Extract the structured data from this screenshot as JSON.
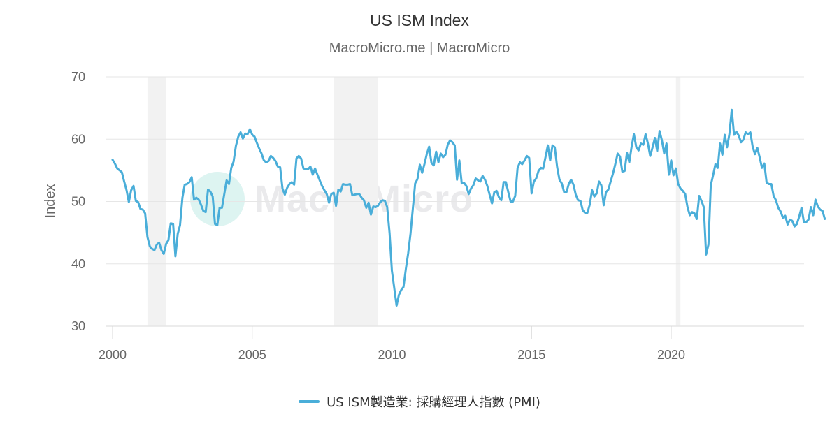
{
  "header": {
    "title": "US ISM Index",
    "subtitle": "MacroMicro.me | MacroMicro"
  },
  "watermark": {
    "text": "MacroMicro"
  },
  "legend": {
    "label": "US ISM製造業: 採購經理人指數 (PMI)",
    "color": "#4aaed9"
  },
  "colors": {
    "line": "#4aaed9",
    "grid": "#e6e6e6",
    "recession": "#f2f2f2",
    "axis_text": "#666666"
  },
  "chart_data": {
    "type": "line",
    "title": "US ISM Index",
    "subtitle": "MacroMicro.me | MacroMicro",
    "xlabel": "",
    "ylabel": "Index",
    "ylim": [
      30,
      70
    ],
    "yticks": [
      30,
      40,
      50,
      60,
      70
    ],
    "xlim": [
      2000,
      2024.75
    ],
    "xticks": [
      2000,
      2005,
      2010,
      2015,
      2020
    ],
    "grid": true,
    "legend_position": "bottom",
    "recession_bands": [
      [
        2001.25,
        2001.92
      ],
      [
        2007.92,
        2009.5
      ],
      [
        2020.17,
        2020.33
      ]
    ],
    "series": [
      {
        "name": "US ISM製造業: 採購經理人指數 (PMI)",
        "x_start": 2000.0,
        "x_step_months": 1,
        "values": [
          56.7,
          56.1,
          55.3,
          55.0,
          54.7,
          53.2,
          51.8,
          49.9,
          51.8,
          52.5,
          50.1,
          49.9,
          48.8,
          48.7,
          48.1,
          44.3,
          42.8,
          42.4,
          42.2,
          43.1,
          43.4,
          42.2,
          41.6,
          43.2,
          43.8,
          46.5,
          46.4,
          41.2,
          44.8,
          46.2,
          50.6,
          52.7,
          52.8,
          53.1,
          53.9,
          50.3,
          50.6,
          50.3,
          49.5,
          48.5,
          48.3,
          51.9,
          51.6,
          50.8,
          46.4,
          46.2,
          49.0,
          49.0,
          51.2,
          53.4,
          52.8,
          55.4,
          56.4,
          58.9,
          60.4,
          61.1,
          60.1,
          60.9,
          60.8,
          61.6,
          60.7,
          60.4,
          59.4,
          58.5,
          57.7,
          56.6,
          56.3,
          56.5,
          57.3,
          57.0,
          56.5,
          55.6,
          55.5,
          52.1,
          51.1,
          52.2,
          52.8,
          53.1,
          52.7,
          56.9,
          57.3,
          56.9,
          55.3,
          55.2,
          55.2,
          55.6,
          54.3,
          55.3,
          54.3,
          53.4,
          52.5,
          51.8,
          51.2,
          49.8,
          51.2,
          51.4,
          49.3,
          51.9,
          51.6,
          52.8,
          52.7,
          52.7,
          52.8,
          51.0,
          51.1,
          51.2,
          51.2,
          50.6,
          50.2,
          49.0,
          49.8,
          47.9,
          49.2,
          49.1,
          49.3,
          49.9,
          50.2,
          50.1,
          49.1,
          44.9,
          38.9,
          36.2,
          33.3,
          35.0,
          35.8,
          36.3,
          39.2,
          41.7,
          44.8,
          48.9,
          52.9,
          53.6,
          55.9,
          54.6,
          56.0,
          57.6,
          58.8,
          56.2,
          55.8,
          58.0,
          56.3,
          57.7,
          57.1,
          57.5,
          59.1,
          59.8,
          59.5,
          59.0,
          53.5,
          56.6,
          52.9,
          53.0,
          52.5,
          51.2,
          52.1,
          52.6,
          53.7,
          53.4,
          53.2,
          54.1,
          53.5,
          52.5,
          51.1,
          49.7,
          51.5,
          51.7,
          50.7,
          50.2,
          53.1,
          53.1,
          51.5,
          50.0,
          50.0,
          50.9,
          55.4,
          56.3,
          56.0,
          56.6,
          57.3,
          57.0,
          51.3,
          53.2,
          53.7,
          54.9,
          55.4,
          55.3,
          57.1,
          59.0,
          56.6,
          59.0,
          58.7,
          55.5,
          53.5,
          52.9,
          51.5,
          51.5,
          52.8,
          53.5,
          52.7,
          51.1,
          50.2,
          50.1,
          48.6,
          48.2,
          48.2,
          49.5,
          51.8,
          50.8,
          51.3,
          53.2,
          52.6,
          49.4,
          51.5,
          51.9,
          53.2,
          54.5,
          56.0,
          57.7,
          57.2,
          54.8,
          54.9,
          57.8,
          56.3,
          58.8,
          60.8,
          58.7,
          58.2,
          59.3,
          59.1,
          60.8,
          59.3,
          57.3,
          58.7,
          60.2,
          58.1,
          61.3,
          59.8,
          57.7,
          59.3,
          54.3,
          56.6,
          54.2,
          55.3,
          52.8,
          52.1,
          51.7,
          51.2,
          49.1,
          47.8,
          48.3,
          48.1,
          47.2,
          50.9,
          50.1,
          49.1,
          41.5,
          43.1,
          52.6,
          54.2,
          56.0,
          55.4,
          59.3,
          57.5,
          60.7,
          58.7,
          60.8,
          64.7,
          60.7,
          61.2,
          60.6,
          59.5,
          59.9,
          61.1,
          60.8,
          61.1,
          58.8,
          57.6,
          58.6,
          57.1,
          55.4,
          56.1,
          53.0,
          52.8,
          52.8,
          50.9,
          50.2,
          49.0,
          48.4,
          47.4,
          47.7,
          46.3,
          47.1,
          46.9,
          46.0,
          46.4,
          47.6,
          49.0,
          46.7,
          46.7,
          47.1,
          49.1,
          47.8,
          50.3,
          49.2,
          48.7,
          48.5,
          47.2
        ]
      }
    ]
  }
}
